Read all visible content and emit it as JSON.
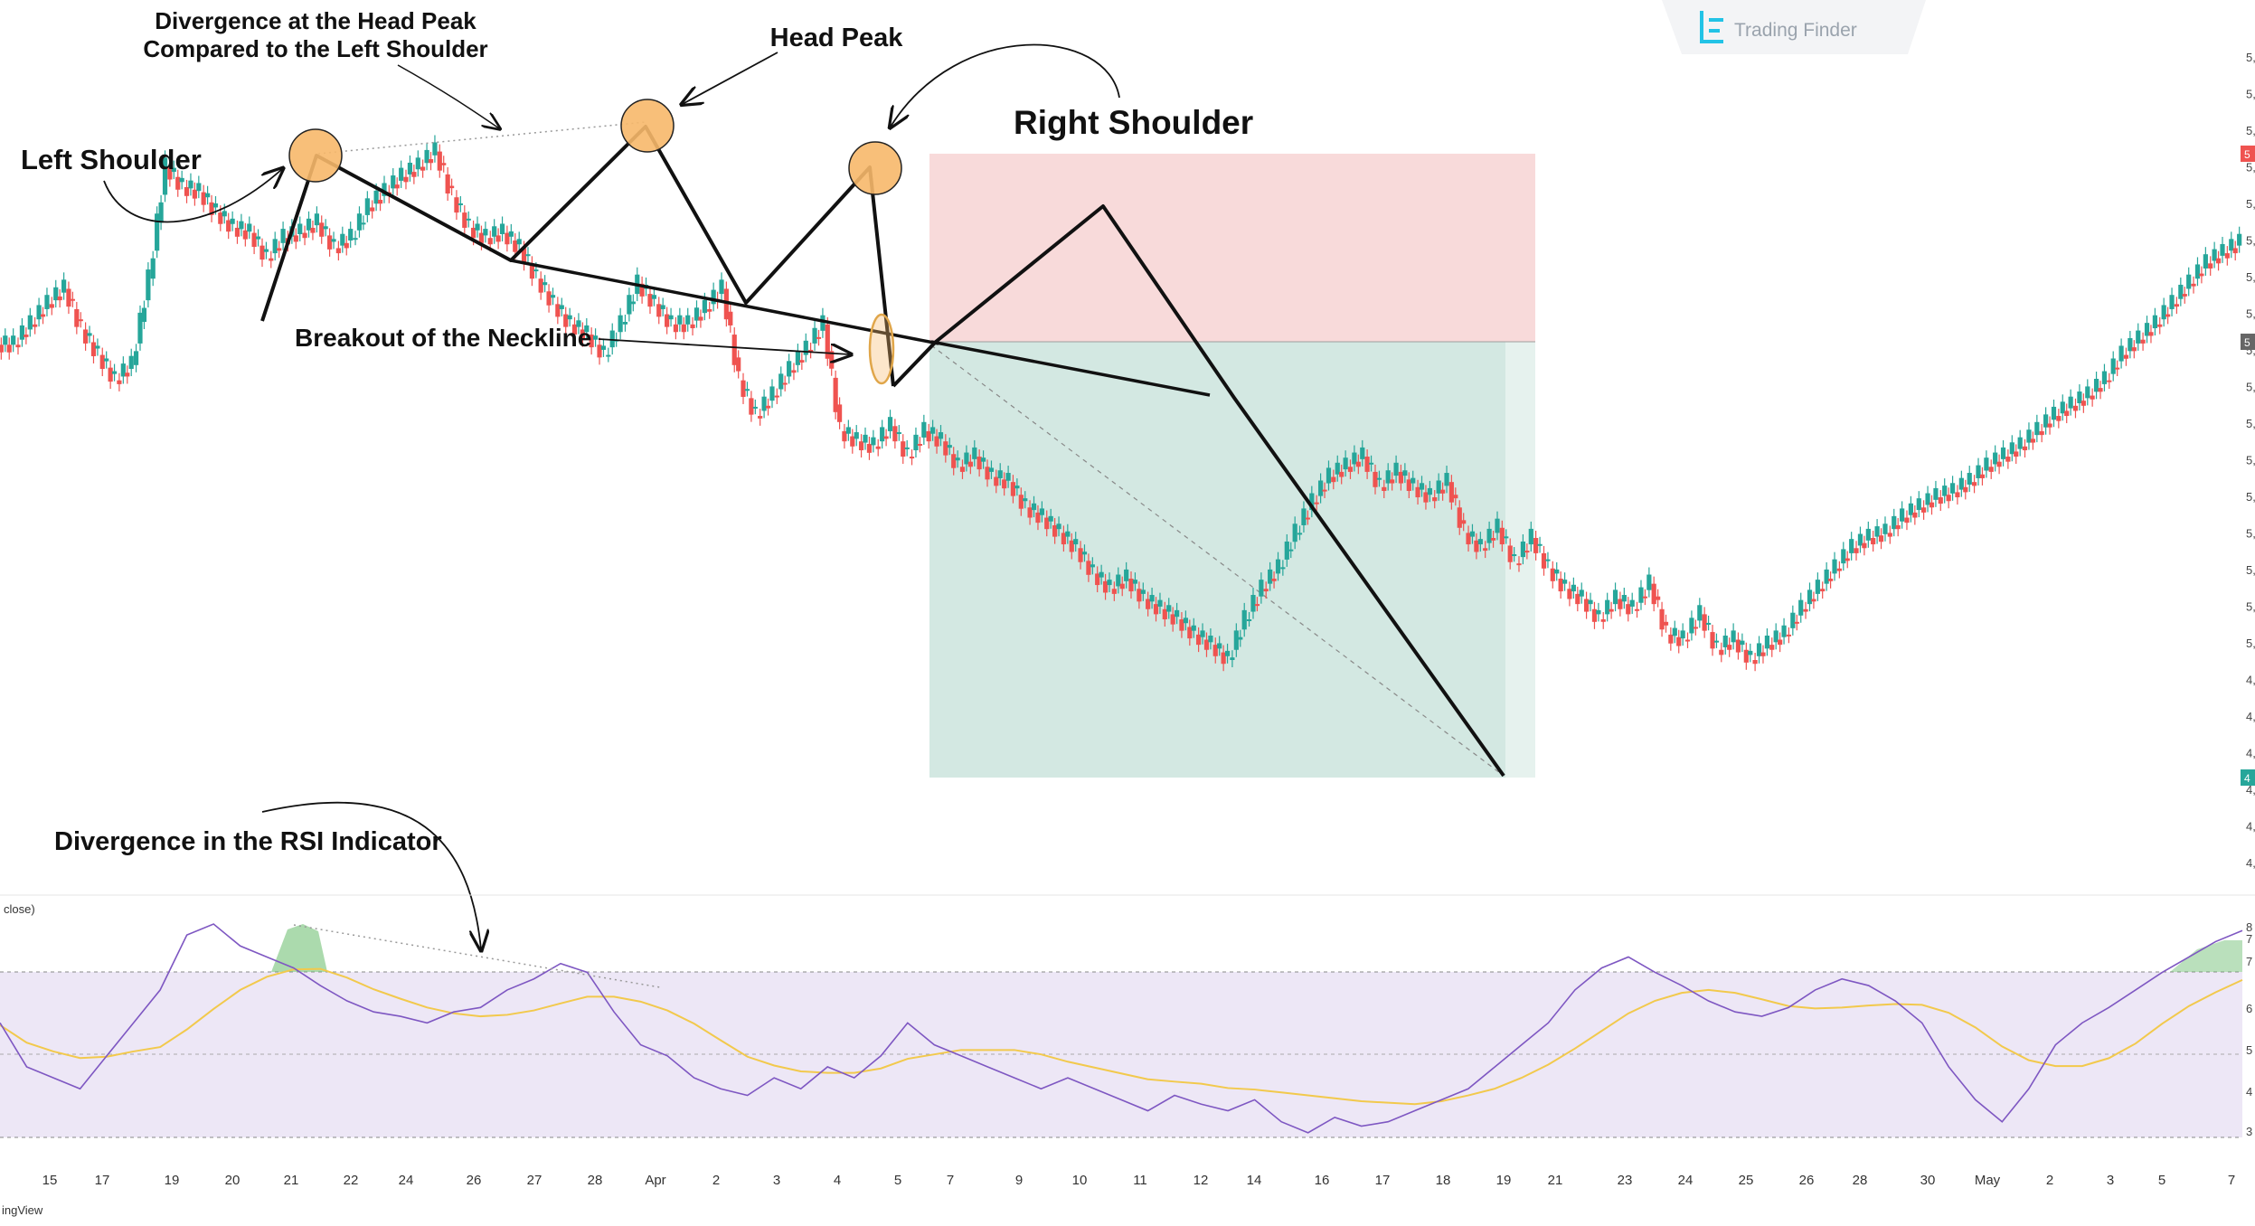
{
  "brand": {
    "name": "Trading Finder",
    "icon": "trading-finder-logo-icon",
    "attribution": "ingView"
  },
  "rsi_label": "close)",
  "annotations": {
    "left_shoulder": "Left Shoulder",
    "divergence_line1": "Divergence at the Head Peak",
    "divergence_line2": "Compared to the Left Shoulder",
    "head_peak": "Head Peak",
    "right_shoulder": "Right Shoulder",
    "neckline_breakout": "Breakout of the Neckline",
    "rsi_divergence": "Divergence in the RSI Indicator"
  },
  "colors": {
    "bull": "#26a69a",
    "bear": "#ef5350",
    "stop_zone": "#f8dada",
    "target_zone": "#d3e8e2",
    "marker_fill": "#f7b86a",
    "marker_stroke": "#222222",
    "rsi_line": "#7e57c2",
    "rsi_ma": "#f2c94c",
    "rsi_band": "#ede7f6"
  },
  "chart_data": [
    {
      "type": "candlestick",
      "title": "",
      "x_ticks": [
        "15",
        "17",
        "19",
        "20",
        "21",
        "22",
        "24",
        "26",
        "27",
        "28",
        "Apr",
        "2",
        "3",
        "4",
        "5",
        "7",
        "9",
        "10",
        "11",
        "12",
        "14",
        "16",
        "17",
        "18",
        "19",
        "21",
        "23",
        "24",
        "25",
        "26",
        "28",
        "30",
        "May",
        "2",
        "3",
        "5",
        "7"
      ],
      "price_axis_labels": [
        "5,",
        "5,",
        "5,",
        "5,",
        "5,",
        "5,",
        "5,",
        "5,",
        "5,",
        "5,",
        "5,",
        "5,",
        "5,",
        "5,",
        "5,",
        "5,",
        "5,",
        "4,",
        "4,",
        "4,",
        "4,",
        "4,",
        "4,"
      ],
      "price_axis_markers": [
        "5",
        "5",
        "4"
      ],
      "patterns": {
        "left_shoulder_peak": {
          "x": "21"
        },
        "head_peak": {
          "x": "28"
        },
        "right_shoulder_peak": {
          "x": "10"
        },
        "neckline_breakout": {
          "x": "5"
        },
        "target_low": {
          "x": "19"
        }
      },
      "close_path_normalized": [
        0.62,
        0.66,
        0.7,
        0.73,
        0.65,
        0.6,
        0.55,
        0.58,
        0.75,
        0.97,
        0.93,
        0.92,
        0.88,
        0.85,
        0.84,
        0.79,
        0.83,
        0.84,
        0.86,
        0.81,
        0.83,
        0.89,
        0.92,
        0.95,
        0.97,
        1.0,
        0.91,
        0.85,
        0.83,
        0.84,
        0.81,
        0.75,
        0.7,
        0.66,
        0.64,
        0.6,
        0.66,
        0.74,
        0.7,
        0.66,
        0.66,
        0.69,
        0.73,
        0.55,
        0.48,
        0.52,
        0.57,
        0.61,
        0.66,
        0.45,
        0.43,
        0.42,
        0.46,
        0.4,
        0.45,
        0.43,
        0.38,
        0.4,
        0.36,
        0.35,
        0.3,
        0.28,
        0.25,
        0.22,
        0.17,
        0.14,
        0.16,
        0.12,
        0.1,
        0.08,
        0.05,
        0.03,
        0.0,
        0.08,
        0.14,
        0.18,
        0.25,
        0.31,
        0.36,
        0.38,
        0.4,
        0.34,
        0.37,
        0.34,
        0.32,
        0.35,
        0.25,
        0.22,
        0.26,
        0.19,
        0.24,
        0.18,
        0.14,
        0.12,
        0.08,
        0.12,
        0.1,
        0.15,
        0.05,
        0.04,
        0.09,
        0.02,
        0.04,
        0.0,
        0.03,
        0.05,
        0.1,
        0.14,
        0.18,
        0.22,
        0.24,
        0.25,
        0.28,
        0.3,
        0.32,
        0.33,
        0.35,
        0.38,
        0.4,
        0.42,
        0.45,
        0.48,
        0.5,
        0.52,
        0.55,
        0.6,
        0.63,
        0.66,
        0.7,
        0.74,
        0.78,
        0.8,
        0.82
      ]
    },
    {
      "type": "line",
      "title": "",
      "y_ticks": [
        "8",
        "7",
        "7",
        "6",
        "5",
        "4",
        "3"
      ],
      "rsi_path_normalized": [
        0.55,
        0.35,
        0.3,
        0.25,
        0.4,
        0.55,
        0.7,
        0.95,
        1.0,
        0.9,
        0.85,
        0.8,
        0.72,
        0.65,
        0.6,
        0.58,
        0.55,
        0.6,
        0.62,
        0.7,
        0.75,
        0.82,
        0.78,
        0.6,
        0.45,
        0.4,
        0.3,
        0.25,
        0.22,
        0.3,
        0.25,
        0.35,
        0.3,
        0.4,
        0.55,
        0.45,
        0.4,
        0.35,
        0.3,
        0.25,
        0.3,
        0.25,
        0.2,
        0.15,
        0.22,
        0.18,
        0.15,
        0.2,
        0.1,
        0.05,
        0.12,
        0.08,
        0.1,
        0.15,
        0.2,
        0.25,
        0.35,
        0.45,
        0.55,
        0.7,
        0.8,
        0.85,
        0.78,
        0.72,
        0.65,
        0.6,
        0.58,
        0.62,
        0.7,
        0.75,
        0.72,
        0.65,
        0.55,
        0.35,
        0.2,
        0.1,
        0.25,
        0.45,
        0.55,
        0.62,
        0.7,
        0.78,
        0.85,
        0.92,
        0.97
      ]
    }
  ]
}
